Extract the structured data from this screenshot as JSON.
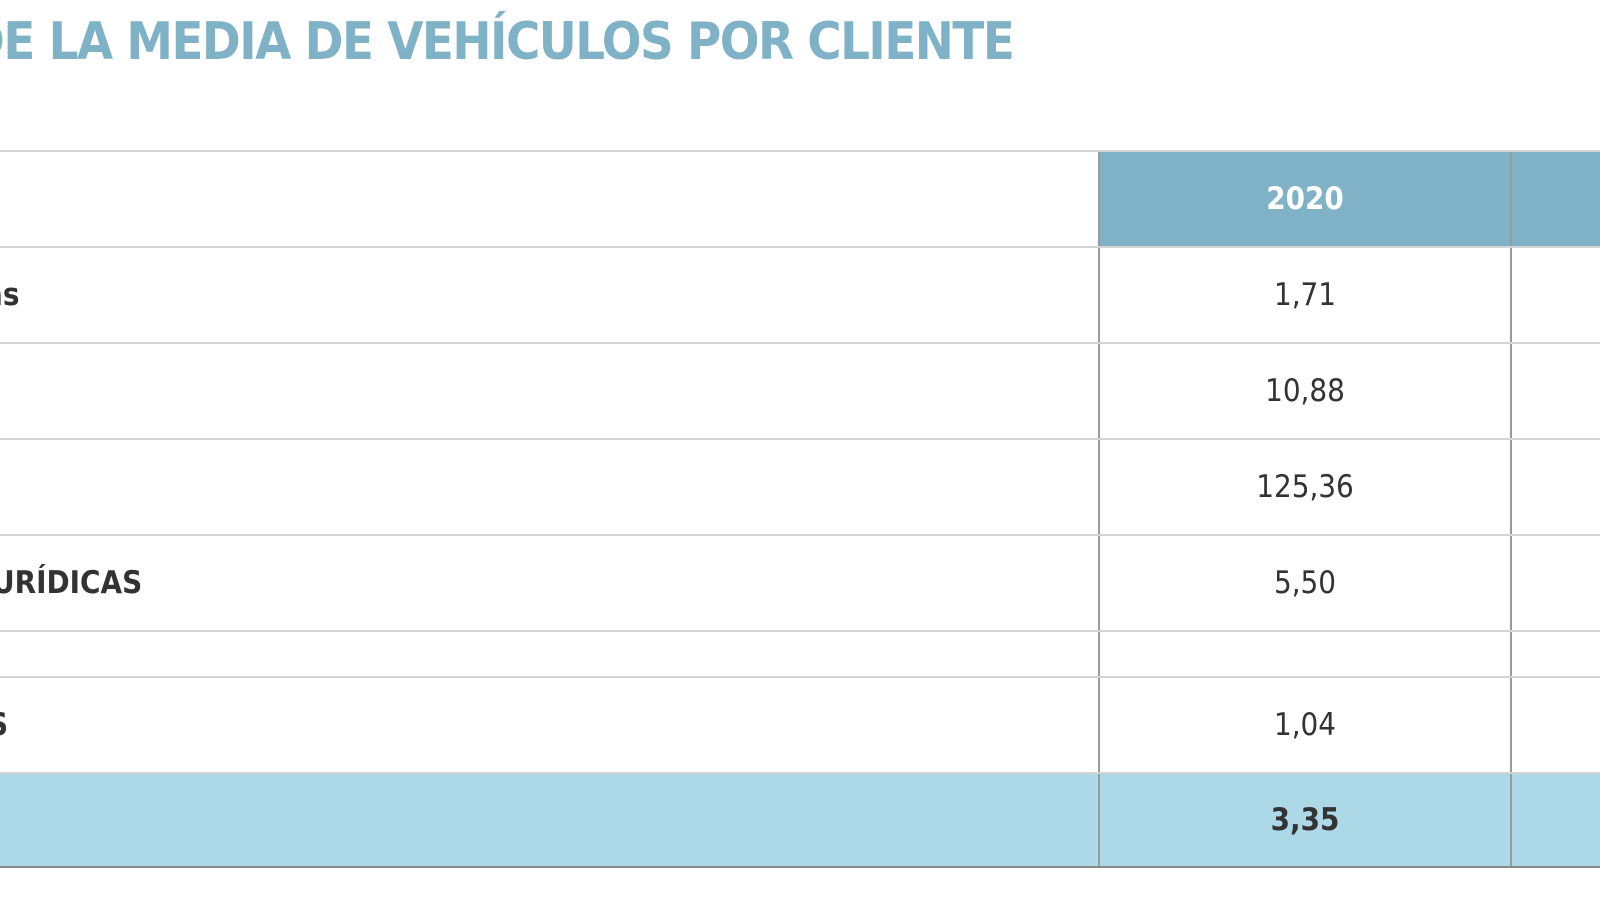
{
  "title": "DE LA MEDIA DE VEHÍCULOS POR CLIENTE",
  "table": {
    "header_year": "2020",
    "rows": [
      {
        "label": "as",
        "value": "1,71"
      },
      {
        "label": "",
        "value": "10,88"
      },
      {
        "label": "",
        "value": "125,36"
      },
      {
        "label": "URÍDICAS",
        "value": "5,50"
      },
      {
        "label": "",
        "value": ""
      },
      {
        "label": "S",
        "value": "1,04"
      }
    ],
    "total_value": "3,35"
  },
  "colors": {
    "accent": "#7fb2c6",
    "total_row": "#add8e8",
    "text": "#333333"
  }
}
